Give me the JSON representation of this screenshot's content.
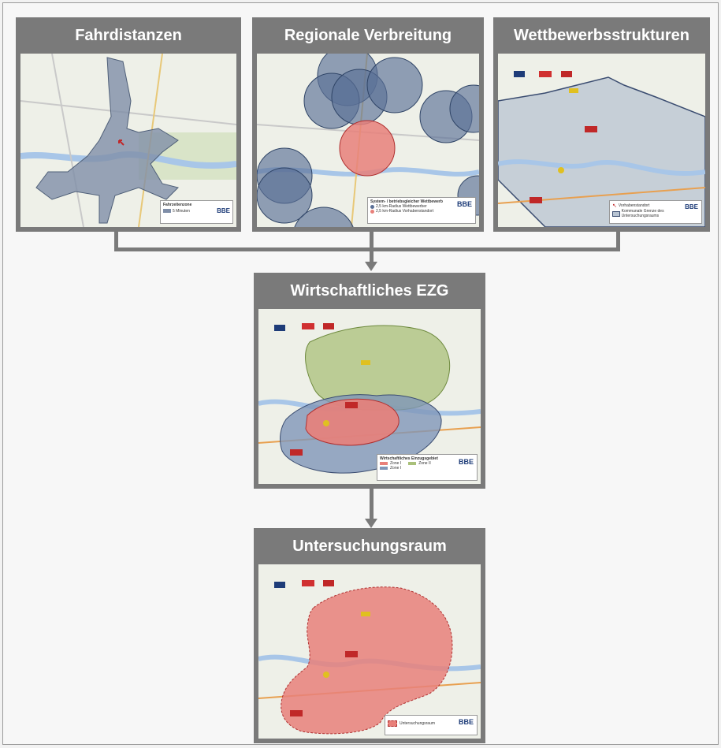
{
  "panels": {
    "fahrdistanzen": {
      "title": "Fahrdistanzen",
      "legend_title": "Fahrzeitenzone",
      "legend_item": "5 Minuten",
      "brand": "BBE"
    },
    "regionale": {
      "title": "Regionale Verbreitung",
      "legend_title": "System- / betriebsgleicher Wettbewerb",
      "legend_item_1": "2,5 km-Radius Wettbewerber",
      "legend_item_2": "2,5 km-Radius Vorhabenstandort",
      "brand": "BBE"
    },
    "wettbewerb": {
      "title": "Wettbewerbsstrukturen",
      "legend_item_1": "Vorhabenstandort",
      "legend_item_2": "Kommunale Grenze des Untersuchungsraums",
      "brand": "BBE"
    },
    "ezg": {
      "title": "Wirtschaftliches EZG",
      "legend_title": "Wirtschaftliches Einzugsgebiet",
      "zone1": "Zone I",
      "zone2": "Zone II",
      "zone1b": "Zone I",
      "brand": "BBE"
    },
    "untersuchung": {
      "title": "Untersuchungsraum",
      "legend_item": "Untersuchungsraum",
      "brand": "BBE"
    }
  },
  "colors": {
    "panel_bg": "#7a7a7a",
    "map_bg": "#eef0e8",
    "blue_fill": "#6d86a8",
    "red_fill": "#e8807a",
    "green_fill": "#a9c07a"
  }
}
